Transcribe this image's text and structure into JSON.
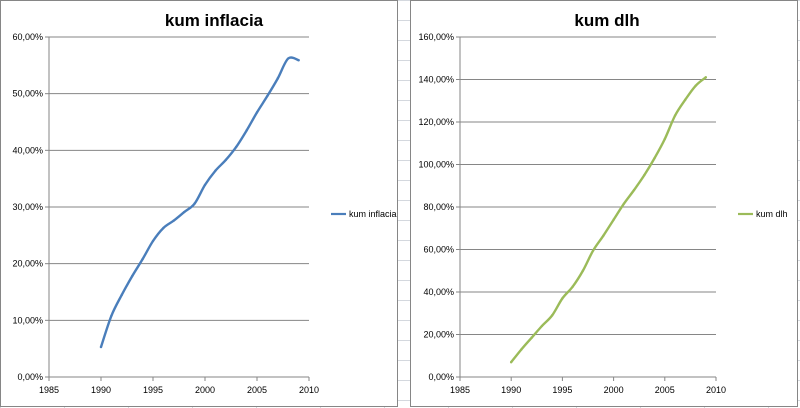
{
  "chart_data": [
    {
      "type": "line",
      "title": "kum inflacia",
      "xlabel": "",
      "ylabel": "",
      "xlim": [
        1985,
        2010
      ],
      "ylim": [
        0,
        60
      ],
      "x_ticks": [
        1985,
        1990,
        1995,
        2000,
        2005,
        2010
      ],
      "y_ticks": [
        0,
        10,
        20,
        30,
        40,
        50,
        60
      ],
      "x_tick_labels": [
        "1985",
        "1990",
        "1995",
        "2000",
        "2005",
        "2010"
      ],
      "y_tick_labels": [
        "0,00%",
        "10,00%",
        "20,00%",
        "30,00%",
        "40,00%",
        "50,00%",
        "60,00%"
      ],
      "y_unit": "%",
      "grid": "horizontal",
      "legend_position": "right",
      "series": [
        {
          "name": "kum inflacia",
          "color": "#4a7ebb",
          "x": [
            1990,
            1991,
            1992,
            1993,
            1994,
            1995,
            1996,
            1997,
            1998,
            1999,
            2000,
            2001,
            2002,
            2003,
            2004,
            2005,
            2006,
            2007,
            2008,
            2009
          ],
          "y": [
            5.3,
            10.8,
            14.5,
            17.8,
            20.8,
            24.0,
            26.3,
            27.6,
            29.1,
            30.6,
            33.9,
            36.4,
            38.3,
            40.6,
            43.5,
            46.7,
            49.6,
            52.7,
            56.2,
            55.9
          ]
        }
      ]
    },
    {
      "type": "line",
      "title": "kum dlh",
      "xlabel": "",
      "ylabel": "",
      "xlim": [
        1985,
        2010
      ],
      "ylim": [
        0,
        160
      ],
      "x_ticks": [
        1985,
        1990,
        1995,
        2000,
        2005,
        2010
      ],
      "y_ticks": [
        0,
        20,
        40,
        60,
        80,
        100,
        120,
        140,
        160
      ],
      "x_tick_labels": [
        "1985",
        "1990",
        "1995",
        "2000",
        "2005",
        "2010"
      ],
      "y_tick_labels": [
        "0,00%",
        "20,00%",
        "40,00%",
        "60,00%",
        "80,00%",
        "100,00%",
        "120,00%",
        "140,00%",
        "160,00%"
      ],
      "y_unit": "%",
      "grid": "horizontal",
      "legend_position": "right",
      "series": [
        {
          "name": "kum dlh",
          "color": "#9bbb59",
          "x": [
            1990,
            1991,
            1992,
            1993,
            1994,
            1995,
            1996,
            1997,
            1998,
            1999,
            2000,
            2001,
            2002,
            2003,
            2004,
            2005,
            2006,
            2007,
            2008,
            2009
          ],
          "y": [
            7.0,
            13.0,
            18.5,
            24.0,
            29.0,
            37.0,
            42.5,
            50.0,
            59.5,
            66.5,
            74.0,
            81.5,
            88.0,
            95.0,
            103.0,
            112.0,
            123.0,
            130.5,
            137.0,
            141.0
          ]
        }
      ]
    }
  ]
}
